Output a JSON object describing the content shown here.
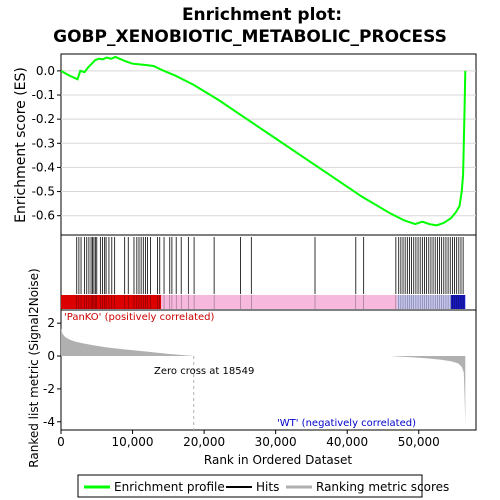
{
  "title_line1": "Enrichment plot:",
  "title_line2": "GOBP_XENOBIOTIC_METABOLIC_PROCESS",
  "colors": {
    "enrichment": "#00ff00",
    "hits": "#000000",
    "metric": "#b0b0b0",
    "positive_label": "#cc0000",
    "negative_label": "#0000cc"
  },
  "chart_data": [
    {
      "type": "line",
      "name": "enrichment-score-panel",
      "ylabel": "Enrichment score (ES)",
      "ylim": [
        -0.68,
        0.07
      ],
      "yticks": [
        0.0,
        -0.1,
        -0.2,
        -0.3,
        -0.4,
        -0.5,
        -0.6
      ],
      "ytick_labels": [
        "0.0",
        "-0.1",
        "-0.2",
        "-0.3",
        "-0.4",
        "-0.5",
        "-0.6"
      ],
      "xlim": [
        0,
        58000
      ],
      "series": [
        {
          "name": "Enrichment profile",
          "x": [
            0,
            1200,
            2300,
            2700,
            3300,
            3800,
            4300,
            4800,
            5300,
            5800,
            6400,
            7000,
            7600,
            8200,
            9000,
            10000,
            11000,
            12000,
            13000,
            14000,
            16000,
            18549,
            22000,
            26000,
            30000,
            34000,
            38000,
            42000,
            46000,
            48000,
            49500,
            50500,
            51500,
            52500,
            53500,
            54500,
            55200,
            55700,
            56000,
            56200,
            56300,
            56400,
            56500
          ],
          "y": [
            0.0,
            -0.02,
            -0.035,
            0.0,
            -0.005,
            0.015,
            0.03,
            0.045,
            0.05,
            0.048,
            0.055,
            0.05,
            0.058,
            0.05,
            0.04,
            0.03,
            0.027,
            0.024,
            0.02,
            0.005,
            -0.02,
            -0.058,
            -0.12,
            -0.2,
            -0.28,
            -0.36,
            -0.44,
            -0.52,
            -0.59,
            -0.62,
            -0.635,
            -0.625,
            -0.635,
            -0.64,
            -0.63,
            -0.61,
            -0.585,
            -0.56,
            -0.5,
            -0.43,
            -0.3,
            -0.15,
            0.0
          ]
        }
      ]
    },
    {
      "type": "scatter",
      "name": "hits-panel",
      "description": "Hit positions of gene-set members in the ranked list",
      "series": [
        {
          "name": "Hits",
          "x": [
            2200,
            2500,
            2800,
            3300,
            3600,
            3900,
            4200,
            4400,
            4600,
            4800,
            5000,
            5500,
            5800,
            6100,
            6300,
            6700,
            7100,
            7500,
            8900,
            9400,
            10200,
            10600,
            10900,
            11200,
            11500,
            11800,
            12100,
            12500,
            13500,
            13800,
            14400,
            15200,
            15500,
            16100,
            16800,
            17800,
            18600,
            21400,
            25100,
            26600,
            35500,
            41200,
            42300,
            46800,
            47200,
            47500,
            47800,
            48100,
            48400,
            48700,
            49000,
            49300,
            49600,
            49900,
            50200,
            50500,
            50800,
            51100,
            51400,
            51700,
            52000,
            52300,
            52600,
            52900,
            53200,
            53500,
            53800,
            54100,
            54400,
            54700,
            55000,
            55300,
            55600,
            55900,
            56200
          ]
        }
      ]
    },
    {
      "type": "area",
      "name": "ranked-metric-panel",
      "ylabel": "Ranked list metric (Signal2Noise)",
      "xlabel": "Rank in Ordered Dataset",
      "ylim": [
        -4.5,
        2.8
      ],
      "yticks": [
        2,
        0,
        -2,
        -4
      ],
      "ytick_labels": [
        "2",
        "0",
        "-2",
        "-4"
      ],
      "xlim": [
        0,
        58000
      ],
      "xticks": [
        0,
        10000,
        20000,
        30000,
        40000,
        50000
      ],
      "xtick_labels": [
        "0",
        "10,000",
        "20,000",
        "30,000",
        "40,000",
        "50,000"
      ],
      "positive_label": "'PanKO' (positively correlated)",
      "negative_label": "'WT' (negatively correlated)",
      "zero_cross_label": "Zero cross at 18549",
      "zero_cross": 18549,
      "series": [
        {
          "name": "Ranking metric scores",
          "x": [
            0,
            200,
            600,
            1200,
            2000,
            3000,
            4500,
            6500,
            9000,
            12000,
            15000,
            18549,
            30000,
            46000,
            47000,
            49000,
            51000,
            53000,
            54500,
            55500,
            56000,
            56300,
            56400,
            56500
          ],
          "y": [
            1.7,
            1.35,
            1.15,
            1.0,
            0.88,
            0.78,
            0.65,
            0.52,
            0.4,
            0.27,
            0.13,
            0.0,
            0.0,
            0.0,
            -0.03,
            -0.08,
            -0.14,
            -0.22,
            -0.32,
            -0.45,
            -0.65,
            -1.0,
            -2.5,
            -4.2
          ]
        }
      ]
    }
  ],
  "heat_bar": {
    "segments": [
      {
        "from": 0,
        "to": 14000,
        "color": "#dd0000"
      },
      {
        "from": 14000,
        "to": 47000,
        "color": "#f7b8de"
      },
      {
        "from": 47000,
        "to": 54500,
        "color": "#c8c8f4"
      },
      {
        "from": 54500,
        "to": 56500,
        "color": "#1818c0"
      }
    ]
  },
  "legend": {
    "items": [
      {
        "label": "Enrichment profile",
        "color": "#00ff00"
      },
      {
        "label": "Hits",
        "color": "#000000"
      },
      {
        "label": "Ranking metric scores",
        "color": "#b0b0b0"
      }
    ]
  }
}
